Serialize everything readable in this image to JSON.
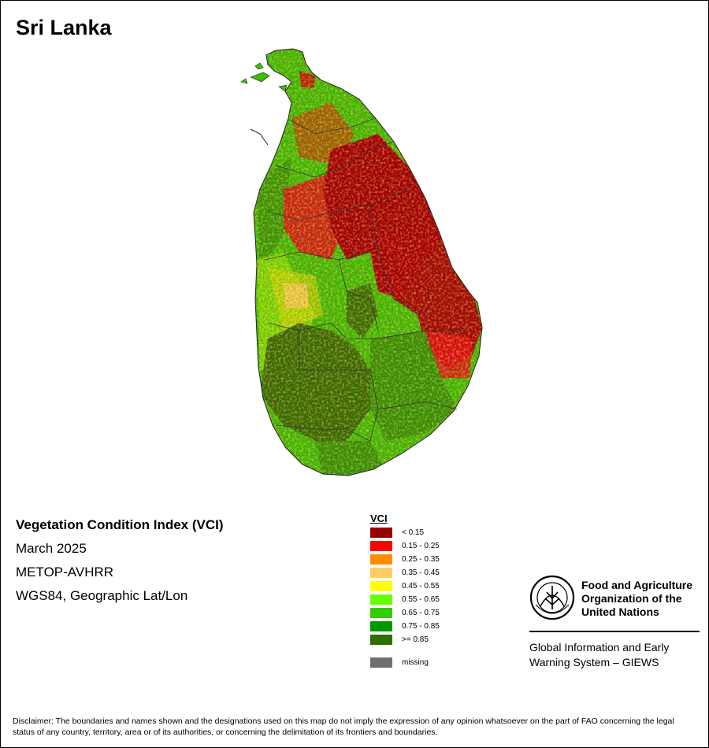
{
  "map": {
    "title": "Sri Lanka",
    "info": {
      "index_name": "Vegetation Condition Index (VCI)",
      "period": "March 2025",
      "sensor": "METOP-AVHRR",
      "projection": "WGS84, Geographic Lat/Lon"
    },
    "legend": {
      "title": "VCI",
      "classes": [
        {
          "label": "< 0.15",
          "color": "#990000"
        },
        {
          "label": "0.15 - 0.25",
          "color": "#ff0000"
        },
        {
          "label": "0.25 - 0.35",
          "color": "#ff8c00"
        },
        {
          "label": "0.35 - 0.45",
          "color": "#ffcc66"
        },
        {
          "label": "0.45 - 0.55",
          "color": "#ffff00"
        },
        {
          "label": "0.55 - 0.65",
          "color": "#66ff00"
        },
        {
          "label": "0.65 - 0.75",
          "color": "#33cc00"
        },
        {
          "label": "0.75 - 0.85",
          "color": "#009900"
        },
        {
          "label": ">= 0.85",
          "color": "#2e7000"
        }
      ],
      "missing": {
        "label": "missing",
        "color": "#707070"
      }
    },
    "fao": {
      "emblem_icon": "fao-emblem-icon",
      "name": "Food and Agriculture Organization of the United Nations",
      "program": "Global Information and Early Warning System – GIEWS"
    },
    "disclaimer": "Disclaimer: The boundaries and names shown and the designations used on this map do not imply the expression of any opinion whatsoever on the part of FAO concerning the legal status of any country, territory, area or of its authorities, or concerning the delimitation of its frontiers and boundaries."
  }
}
